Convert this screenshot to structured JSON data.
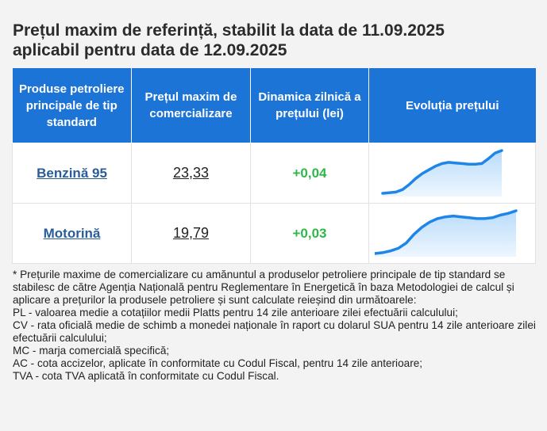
{
  "title_line1": "Prețul maxim de referință, stabilit la data de 11.09.2025",
  "title_line2": "aplicabil pentru data de 12.09.2025",
  "table": {
    "headers": [
      "Produse petroliere principale de tip standard",
      "Prețul maxim de comercializare",
      "Dinamica zilnică a prețului (lei)",
      "Evoluția prețului"
    ],
    "rows": [
      {
        "product": "Benzină 95",
        "price": "23,33",
        "change": "+0,04",
        "trend": [
          22.64,
          22.65,
          22.66,
          22.7,
          22.78,
          22.88,
          22.96,
          23.02,
          23.08,
          23.12,
          23.14,
          23.13,
          23.12,
          23.11,
          23.11,
          23.12,
          23.2,
          23.29,
          23.33
        ]
      },
      {
        "product": "Motorină",
        "price": "19,79",
        "change": "+0,03",
        "trend": [
          19.3,
          19.31,
          19.33,
          19.36,
          19.42,
          19.52,
          19.6,
          19.66,
          19.7,
          19.72,
          19.73,
          19.72,
          19.71,
          19.7,
          19.7,
          19.71,
          19.74,
          19.76,
          19.79
        ]
      }
    ]
  },
  "notes": [
    "* Prețurile maxime de comercializare cu amănuntul a produselor petroliere principale de tip standard se stabilesc de către Agenția Națională pentru Reglementare în Energetică în baza Metodologiei de calcul și aplicare a prețurilor la produsele petroliere și sunt calculate reieșind din următoarele:",
    "PL - valoarea medie a cotațiilor medii Platts pentru 14 zile anterioare zilei efectuării calculului;",
    "CV - rata oficială medie de schimb a monedei naționale în raport cu dolarul SUA pentru 14 zile anterioare zilei efectuării calculului;",
    "MC - marja comercială specifică;",
    "AC - cota accizelor, aplicate în conformitate cu Codul Fiscal, pentru 14 zile anterioare;",
    "TVA - cota TVA aplicată în conformitate cu Codul Fiscal."
  ],
  "colors": {
    "header_bg": "#1d74d7",
    "link": "#2a5d98",
    "positive": "#2fb84a",
    "spark_line": "#1f86e8",
    "spark_fill": "#b9dcfb"
  }
}
